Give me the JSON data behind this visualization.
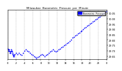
{
  "title": "Milwaukee  Barometric  Pressure  per  Minute",
  "bg_color": "#ffffff",
  "plot_bg": "#ffffff",
  "dot_color": "#0000ff",
  "dot_size": 1.5,
  "ylim": [
    29.62,
    30.08
  ],
  "xlim": [
    0,
    1440
  ],
  "yticks": [
    29.65,
    29.7,
    29.75,
    29.8,
    29.85,
    29.9,
    29.95,
    30.0,
    30.05
  ],
  "xtick_positions": [
    0,
    120,
    240,
    360,
    480,
    600,
    720,
    840,
    960,
    1080,
    1200,
    1320,
    1440
  ],
  "xtick_labels": [
    "0",
    "2",
    "4",
    "6",
    "8",
    "10",
    "12",
    "14",
    "16",
    "18",
    "20",
    "22",
    "0"
  ],
  "grid_color": "#aaaaaa",
  "grid_style": "--",
  "legend_label": "Barometric  Pressure",
  "legend_color": "#0000ff",
  "data_x": [
    0,
    5,
    10,
    15,
    20,
    25,
    30,
    35,
    40,
    45,
    50,
    55,
    60,
    65,
    70,
    75,
    80,
    85,
    90,
    95,
    100,
    120,
    140,
    160,
    180,
    200,
    220,
    240,
    260,
    280,
    300,
    320,
    340,
    360,
    380,
    400,
    420,
    440,
    460,
    480,
    500,
    520,
    540,
    560,
    580,
    600,
    620,
    640,
    660,
    680,
    700,
    720,
    740,
    760,
    780,
    800,
    820,
    840,
    860,
    880,
    900,
    920,
    940,
    960,
    980,
    1000,
    1020,
    1040,
    1060,
    1080,
    1100,
    1120,
    1140,
    1160,
    1180,
    1200,
    1220,
    1240,
    1260,
    1280,
    1300,
    1320,
    1340,
    1360,
    1380,
    1400,
    1420,
    1440
  ],
  "data_y": [
    29.72,
    29.71,
    29.7,
    29.71,
    29.7,
    29.69,
    29.68,
    29.68,
    29.69,
    29.7,
    29.71,
    29.7,
    29.69,
    29.68,
    29.67,
    29.66,
    29.65,
    29.66,
    29.65,
    29.66,
    29.67,
    29.68,
    29.67,
    29.68,
    29.67,
    29.66,
    29.68,
    29.7,
    29.71,
    29.7,
    29.69,
    29.68,
    29.67,
    29.66,
    29.65,
    29.64,
    29.63,
    29.64,
    29.65,
    29.66,
    29.67,
    29.66,
    29.65,
    29.66,
    29.67,
    29.68,
    29.69,
    29.7,
    29.71,
    29.7,
    29.69,
    29.7,
    29.71,
    29.72,
    29.73,
    29.74,
    29.75,
    29.76,
    29.77,
    29.78,
    29.79,
    29.8,
    29.82,
    29.83,
    29.84,
    29.85,
    29.86,
    29.87,
    29.88,
    29.89,
    29.9,
    29.91,
    29.92,
    29.93,
    29.94,
    29.95,
    29.96,
    29.97,
    29.98,
    29.99,
    30.0,
    30.01,
    30.02,
    30.03,
    30.04,
    30.05,
    30.06,
    30.07
  ]
}
